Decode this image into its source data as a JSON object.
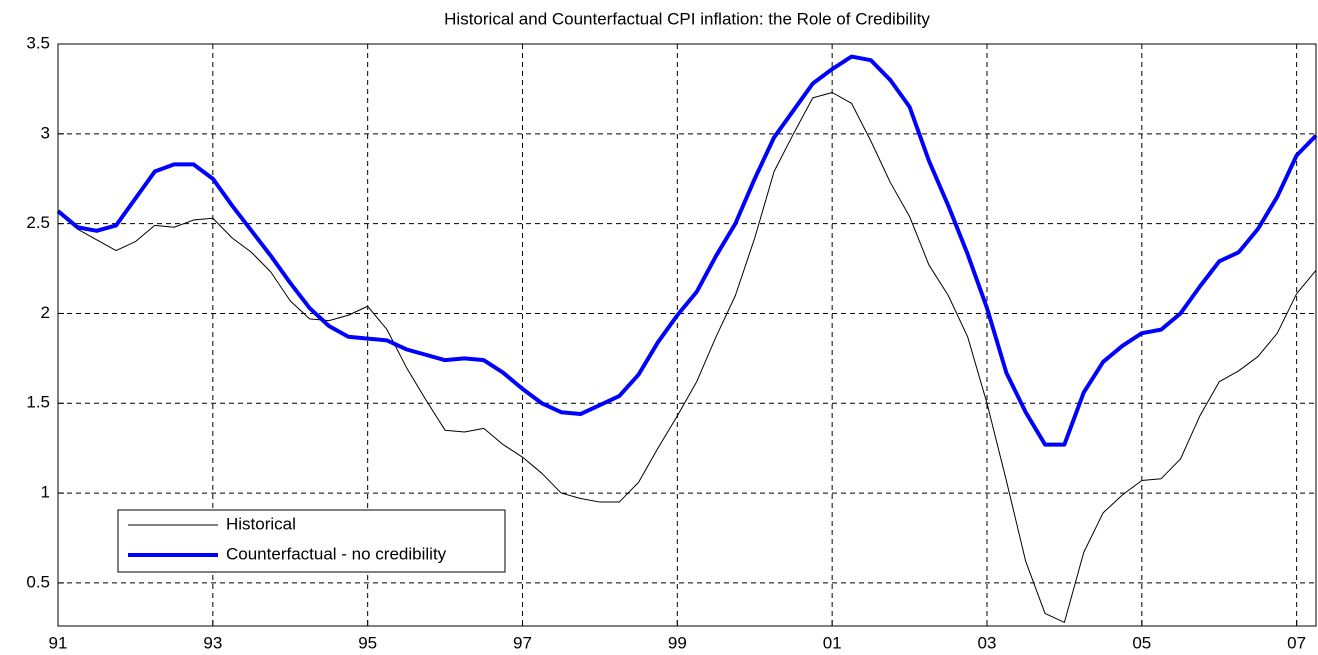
{
  "chart_data": {
    "type": "line",
    "title": "Historical and Counterfactual CPI inflation: the Role of Credibility",
    "x": [
      1991,
      1991.25,
      1991.5,
      1991.75,
      1992,
      1992.25,
      1992.5,
      1992.75,
      1993,
      1993.25,
      1993.5,
      1993.75,
      1994,
      1994.25,
      1994.5,
      1994.75,
      1995,
      1995.25,
      1995.5,
      1995.75,
      1996,
      1996.25,
      1996.5,
      1996.75,
      1997,
      1997.25,
      1997.5,
      1997.75,
      1998,
      1998.25,
      1998.5,
      1998.75,
      1999,
      1999.25,
      1999.5,
      1999.75,
      2000,
      2000.25,
      2000.5,
      2000.75,
      2001,
      2001.25,
      2001.5,
      2001.75,
      2002,
      2002.25,
      2002.5,
      2002.75,
      2003,
      2003.25,
      2003.5,
      2003.75,
      2004,
      2004.25,
      2004.5,
      2004.75,
      2005,
      2005.25,
      2005.5,
      2005.75,
      2006,
      2006.25,
      2006.5,
      2006.75,
      2007,
      2007.25
    ],
    "series": [
      {
        "name": "Historical",
        "color": "#000000",
        "width": 1,
        "values": [
          2.57,
          2.47,
          2.41,
          2.35,
          2.4,
          2.49,
          2.48,
          2.52,
          2.53,
          2.42,
          2.34,
          2.23,
          2.07,
          1.97,
          1.96,
          1.99,
          2.04,
          1.91,
          1.7,
          1.52,
          1.35,
          1.34,
          1.36,
          1.27,
          1.2,
          1.11,
          1.0,
          0.97,
          0.95,
          0.95,
          1.06,
          1.25,
          1.43,
          1.62,
          1.87,
          2.1,
          2.42,
          2.79,
          3.0,
          3.2,
          3.23,
          3.17,
          2.96,
          2.73,
          2.54,
          2.27,
          2.1,
          1.87,
          1.5,
          1.07,
          0.62,
          0.33,
          0.28,
          0.67,
          0.89,
          0.99,
          1.07,
          1.08,
          1.19,
          1.43,
          1.62,
          1.68,
          1.76,
          1.89,
          2.11,
          2.24
        ]
      },
      {
        "name": "Counterfactual - no credibility",
        "color": "#0000ff",
        "width": 4,
        "values": [
          2.57,
          2.48,
          2.46,
          2.49,
          2.64,
          2.79,
          2.83,
          2.83,
          2.75,
          2.6,
          2.46,
          2.32,
          2.17,
          2.03,
          1.93,
          1.87,
          1.86,
          1.85,
          1.8,
          1.77,
          1.74,
          1.75,
          1.74,
          1.67,
          1.58,
          1.5,
          1.45,
          1.44,
          1.49,
          1.54,
          1.66,
          1.84,
          1.99,
          2.12,
          2.32,
          2.5,
          2.75,
          2.98,
          3.13,
          3.28,
          3.36,
          3.43,
          3.41,
          3.3,
          3.15,
          2.85,
          2.6,
          2.33,
          2.03,
          1.67,
          1.45,
          1.27,
          1.27,
          1.56,
          1.73,
          1.82,
          1.89,
          1.91,
          2.0,
          2.15,
          2.29,
          2.34,
          2.47,
          2.65,
          2.88,
          2.99
        ]
      }
    ],
    "xlim": [
      1991,
      2007.25
    ],
    "xticks": [
      {
        "value": 1991,
        "label": "91"
      },
      {
        "value": 1993,
        "label": "93"
      },
      {
        "value": 1995,
        "label": "95"
      },
      {
        "value": 1997,
        "label": "97"
      },
      {
        "value": 1999,
        "label": "99"
      },
      {
        "value": 2001,
        "label": "01"
      },
      {
        "value": 2003,
        "label": "03"
      },
      {
        "value": 2005,
        "label": "05"
      },
      {
        "value": 2007,
        "label": "07"
      }
    ],
    "ylim": [
      0.26,
      3.5
    ],
    "yticks": [
      0.5,
      1,
      1.5,
      2,
      2.5,
      3,
      3.5
    ],
    "grid": true,
    "legend": "lower left"
  }
}
